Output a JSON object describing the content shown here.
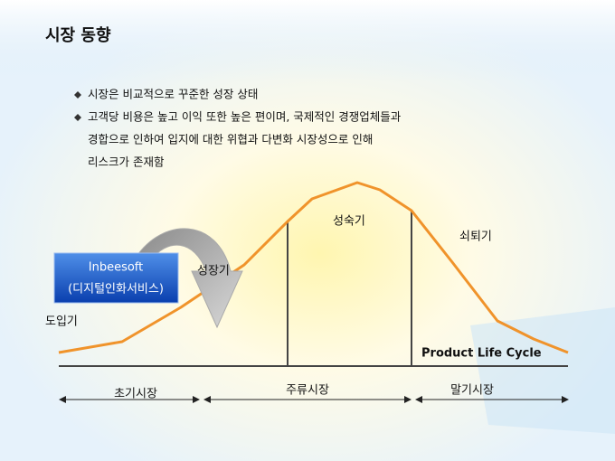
{
  "header": {
    "title": "시장 동향"
  },
  "bullets": [
    {
      "lines": [
        "시장은 비교적으로 꾸준한 성장 상태"
      ]
    },
    {
      "lines": [
        "고객당  비용은 높고  이익 또한 높은 편이며, 국제적인 경쟁업체들과",
        "경합으로 인하여 입지에 대한  위협과 다변화 시장성으로 인해",
        "리스크가 존재함"
      ]
    }
  ],
  "diagram": {
    "badge": [
      "Inbeesoft",
      "(디지털인화서비스)"
    ],
    "stages": [
      "도입기",
      "성장기",
      "성숙기",
      "쇠퇴기"
    ],
    "caption": "Product Life Cycle",
    "markets": [
      "초기시장",
      "주류시장",
      "말기시장"
    ]
  }
}
